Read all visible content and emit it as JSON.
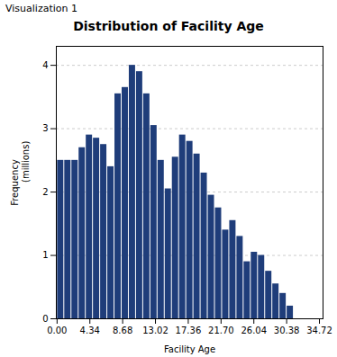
{
  "chart_data": {
    "type": "histogram",
    "title": "Distribution of Facility Age",
    "xlabel": "Facility Age",
    "ylabel": "Frequency",
    "annotations": [
      "Visualization 1",
      "(millions)"
    ],
    "bins": [
      0,
      0.949375,
      1.89875,
      2.848125,
      3.7975,
      4.746875,
      5.69625,
      6.645625,
      7.595,
      8.544375,
      9.49375,
      10.443125,
      11.3925,
      12.341875,
      13.29125,
      14.240625,
      15.19,
      16.139375,
      17.08875,
      18.038125,
      18.9875,
      19.936875,
      20.88625,
      21.835625,
      22.785,
      23.734375,
      24.68375,
      25.633125,
      26.5825,
      27.531875,
      28.48125,
      29.430625,
      30.38,
      31.329375
    ],
    "values": [
      2.5,
      2.5,
      2.5,
      2.7,
      2.9,
      2.85,
      2.75,
      2.4,
      3.55,
      3.65,
      4.0,
      3.9,
      3.55,
      3.05,
      2.5,
      2.05,
      2.55,
      2.9,
      2.8,
      2.6,
      2.3,
      1.95,
      1.75,
      1.4,
      1.55,
      1.3,
      0.9,
      1.05,
      1.0,
      0.75,
      0.55,
      0.4,
      0.2
    ],
    "color": "#1f3d7a",
    "xlim": [
      -0.1,
      35.1946875
    ],
    "xticks": [
      {
        "value": 0,
        "label": "0.00"
      },
      4.34,
      8.68,
      13.02,
      17.36,
      {
        "value": 21.7,
        "label": "21.70"
      },
      26.04,
      30.38,
      34.72
    ],
    "ylim": [
      0,
      4.3
    ],
    "yticks": [
      0,
      1,
      2,
      3,
      4
    ],
    "grid": true
  }
}
